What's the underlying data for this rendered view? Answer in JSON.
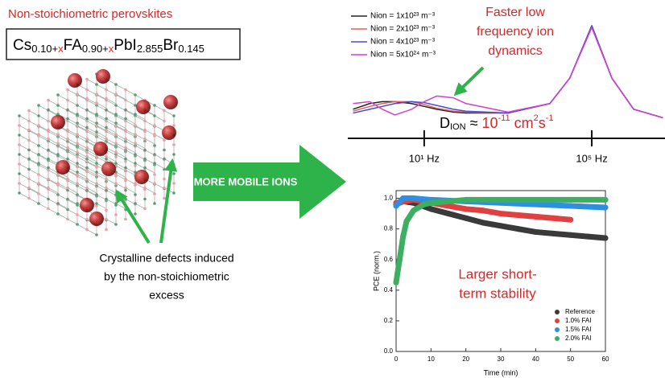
{
  "left": {
    "title": "Non-stoichiometric perovskites",
    "formula": [
      "Cs",
      "0.10+",
      "x",
      "FA",
      "0.90+",
      "x",
      "PbI",
      "2.855",
      "Br",
      "0.145"
    ],
    "note": [
      "Crystalline defects induced",
      "by the non-stoichiometric",
      "excess"
    ]
  },
  "arrow_label": "MORE MOBILE IONS",
  "chart_data": [
    {
      "type": "line",
      "log_x": true,
      "x": [
        0.2,
        0.5,
        1,
        2,
        5,
        10,
        20,
        50,
        100,
        1000,
        10000,
        30000,
        100000,
        300000,
        1000000,
        5000000
      ],
      "xlim": [
        0.15,
        5600000
      ],
      "ylim": [
        0,
        1
      ],
      "xticks": [
        {
          "value": 10,
          "label": "10¹ Hz"
        },
        {
          "value": 100000,
          "label": "10⁵ Hz"
        }
      ],
      "annotation": [
        "Faster low",
        "frequency ion",
        "dynamics"
      ],
      "d_ion": [
        "D",
        "ION",
        " ≈ ",
        "10",
        "-11",
        " cm",
        "2",
        "s",
        "-1"
      ],
      "series": [
        {
          "name": "Nion = 1x10²³ m⁻³",
          "color": "#222222",
          "values": [
            0.12,
            0.18,
            0.2,
            0.2,
            0.18,
            0.15,
            0.12,
            0.09,
            0.08,
            0.08,
            0.18,
            0.45,
            1.0,
            0.45,
            0.12,
            0.03
          ]
        },
        {
          "name": "Nion = 2x10²³ m⁻³",
          "color": "#e06060",
          "values": [
            0.1,
            0.15,
            0.18,
            0.2,
            0.2,
            0.17,
            0.13,
            0.1,
            0.09,
            0.08,
            0.18,
            0.45,
            1.0,
            0.45,
            0.12,
            0.03
          ]
        },
        {
          "name": "Nion = 4x10²³ m⁻³",
          "color": "#4a4ad0",
          "values": [
            0.08,
            0.12,
            0.15,
            0.18,
            0.2,
            0.19,
            0.16,
            0.12,
            0.1,
            0.08,
            0.18,
            0.45,
            1.0,
            0.45,
            0.12,
            0.03
          ]
        },
        {
          "name": "Nion = 5x10²⁴ m⁻³",
          "color": "#d040d0",
          "values": [
            0.18,
            0.2,
            0.12,
            0.06,
            0.12,
            0.2,
            0.26,
            0.24,
            0.18,
            0.09,
            0.18,
            0.45,
            0.98,
            0.45,
            0.12,
            0.03
          ]
        }
      ]
    },
    {
      "type": "scatter",
      "x_label": "Time (min)",
      "y_label": "PCE (norm.)",
      "xlim": [
        0,
        60
      ],
      "ylim": [
        0,
        1.05
      ],
      "xticks": [
        0,
        10,
        20,
        30,
        40,
        50,
        60
      ],
      "yticks": [
        {
          "value": 0,
          "label": "0.0"
        },
        0.2,
        0.4,
        0.6,
        0.8,
        {
          "value": 1,
          "label": "1.0"
        }
      ],
      "annotation": [
        "Larger short-",
        "term stability"
      ],
      "series": [
        {
          "name": "Reference",
          "color": "#3a3a3a",
          "x": [
            0,
            2,
            5,
            10,
            15,
            20,
            25,
            30,
            35,
            40,
            45,
            50,
            55,
            60
          ],
          "values": [
            0.96,
            0.98,
            0.97,
            0.93,
            0.9,
            0.87,
            0.84,
            0.82,
            0.8,
            0.78,
            0.77,
            0.76,
            0.75,
            0.74
          ]
        },
        {
          "name": "1.0% FAI",
          "color": "#e04040",
          "x": [
            0,
            5,
            10,
            15,
            20,
            25,
            30,
            35,
            40,
            45,
            50
          ],
          "values": [
            0.97,
            0.99,
            0.97,
            0.95,
            0.93,
            0.92,
            0.9,
            0.89,
            0.88,
            0.87,
            0.86
          ]
        },
        {
          "name": "1.5% FAI",
          "color": "#2e8fe0",
          "x": [
            0,
            2,
            5,
            10,
            20,
            30,
            40,
            50,
            60
          ],
          "values": [
            0.95,
            1.0,
            1.0,
            0.99,
            0.98,
            0.97,
            0.96,
            0.95,
            0.94
          ]
        },
        {
          "name": "2.0% FAI",
          "color": "#3cb060",
          "x": [
            0,
            1,
            2,
            3,
            5,
            8,
            10,
            15,
            20,
            30,
            40,
            50,
            60
          ],
          "values": [
            0.45,
            0.6,
            0.75,
            0.85,
            0.92,
            0.96,
            0.97,
            0.98,
            0.99,
            0.99,
            0.99,
            0.99,
            0.99
          ]
        }
      ]
    }
  ]
}
